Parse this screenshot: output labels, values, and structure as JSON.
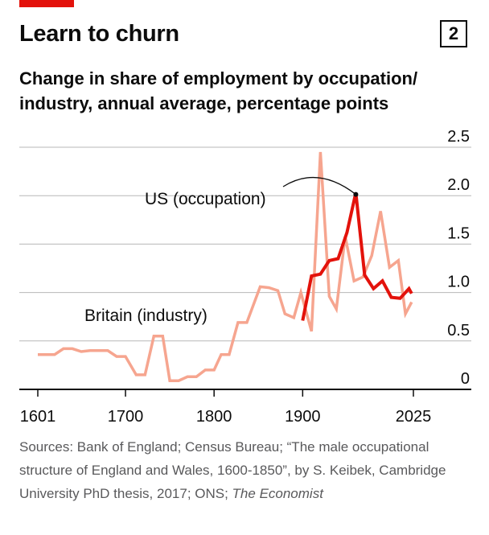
{
  "header": {
    "title": "Learn to churn",
    "badge": "2",
    "subtitle": "Change in share of employment by occupation/ industry, annual average, percentage points"
  },
  "source": {
    "text": "Sources: Bank of England; Census Bureau; “The male occupational structure of England and Wales, 1600-1850”, by S. Keibek, Cambridge University PhD thesis, 2017; ONS; ",
    "italic": "The Economist"
  },
  "colors": {
    "britain": "#f6a58f",
    "us": "#e3120b",
    "grid": "#b7b7b7",
    "axis": "#0c0c0c"
  },
  "chart_data": {
    "type": "line",
    "xlim": [
      1601,
      2025
    ],
    "ylim": [
      0,
      2.5
    ],
    "x_ticks": [
      "1601",
      "1700",
      "1800",
      "1900",
      "2025"
    ],
    "x_tick_values": [
      1601,
      1700,
      1800,
      1900,
      2025
    ],
    "y_ticks": [
      "0",
      "0.5",
      "1.0",
      "1.5",
      "2.0",
      "2.5"
    ],
    "y_tick_values": [
      0,
      0.5,
      1.0,
      1.5,
      2.0,
      2.5
    ],
    "grid": true,
    "series": [
      {
        "name": "Britain (industry)",
        "points": [
          [
            1601,
            0.36
          ],
          [
            1620,
            0.36
          ],
          [
            1630,
            0.42
          ],
          [
            1640,
            0.42
          ],
          [
            1650,
            0.39
          ],
          [
            1660,
            0.4
          ],
          [
            1680,
            0.4
          ],
          [
            1690,
            0.34
          ],
          [
            1700,
            0.34
          ],
          [
            1712,
            0.15
          ],
          [
            1722,
            0.15
          ],
          [
            1732,
            0.55
          ],
          [
            1742,
            0.55
          ],
          [
            1750,
            0.09
          ],
          [
            1760,
            0.09
          ],
          [
            1770,
            0.13
          ],
          [
            1780,
            0.13
          ],
          [
            1790,
            0.2
          ],
          [
            1800,
            0.2
          ],
          [
            1808,
            0.36
          ],
          [
            1817,
            0.36
          ],
          [
            1827,
            0.69
          ],
          [
            1837,
            0.69
          ],
          [
            1852,
            1.06
          ],
          [
            1862,
            1.05
          ],
          [
            1872,
            1.02
          ],
          [
            1880,
            0.78
          ],
          [
            1890,
            0.74
          ],
          [
            1898,
            1.0
          ],
          [
            1910,
            0.6
          ],
          [
            1920,
            2.45
          ],
          [
            1930,
            0.96
          ],
          [
            1938,
            0.83
          ],
          [
            1948,
            1.58
          ],
          [
            1958,
            1.12
          ],
          [
            1968,
            1.16
          ],
          [
            1978,
            1.38
          ],
          [
            1988,
            1.84
          ],
          [
            1998,
            1.26
          ],
          [
            2008,
            1.33
          ],
          [
            2016,
            0.78
          ],
          [
            2023,
            0.9
          ]
        ]
      },
      {
        "name": "US (occupation)",
        "points": [
          [
            1900,
            0.71
          ],
          [
            1910,
            1.17
          ],
          [
            1920,
            1.19
          ],
          [
            1930,
            1.33
          ],
          [
            1940,
            1.35
          ],
          [
            1950,
            1.62
          ],
          [
            1960,
            2.03
          ],
          [
            1970,
            1.18
          ],
          [
            1980,
            1.04
          ],
          [
            1990,
            1.12
          ],
          [
            2000,
            0.95
          ],
          [
            2010,
            0.94
          ],
          [
            2020,
            1.04
          ],
          [
            2023,
            0.99
          ]
        ]
      }
    ],
    "annotations": [
      {
        "text": "US (occupation)",
        "series": "US (occupation)",
        "at_x": 1960
      },
      {
        "text": "Britain (industry)",
        "series": "Britain (industry)"
      }
    ]
  }
}
